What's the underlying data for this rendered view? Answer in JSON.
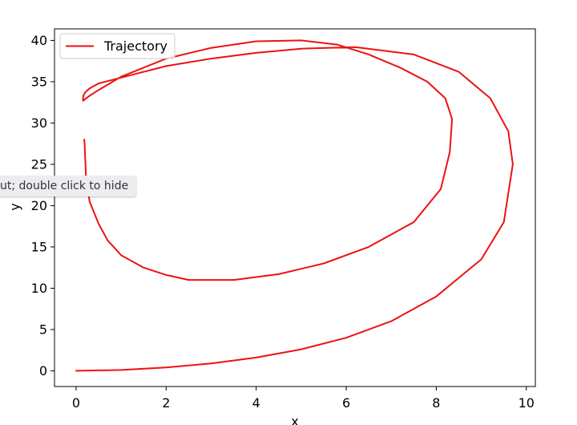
{
  "chart_data": {
    "type": "line",
    "title": "",
    "xlabel": "x",
    "ylabel": "y",
    "xlim": [
      -0.48,
      10.2
    ],
    "ylim": [
      -1.9,
      41.4
    ],
    "xticks": [
      0,
      2,
      4,
      6,
      8,
      10
    ],
    "yticks": [
      0,
      5,
      10,
      15,
      20,
      25,
      30,
      35,
      40
    ],
    "grid": false,
    "legend": {
      "placement": "top-left",
      "entries": [
        "Trajectory"
      ]
    },
    "series": [
      {
        "name": "Trajectory",
        "color": "#ee1111",
        "x": [
          0,
          1,
          2,
          3,
          4,
          5,
          6,
          7,
          8,
          9,
          9.5,
          9.7,
          9.6,
          9.2,
          8.5,
          7.5,
          6.2,
          5,
          4,
          3,
          2,
          1,
          0.5,
          0.3,
          0.2,
          0.16,
          0.15,
          0.16,
          0.2,
          0.3,
          0.5,
          1,
          2,
          3,
          4,
          5,
          5.8,
          6.5,
          7.2,
          7.8,
          8.2,
          8.35,
          8.3,
          8.1,
          7.5,
          6.5,
          5.5,
          4.5,
          3.5,
          2.5,
          2,
          1.5,
          1,
          0.7,
          0.5,
          0.3,
          0.22,
          0.2,
          0.19,
          0.18
        ],
        "y": [
          0,
          0.1,
          0.4,
          0.9,
          1.6,
          2.6,
          4.0,
          6.0,
          9.0,
          13.5,
          18.0,
          25.0,
          29.0,
          33.0,
          36.2,
          38.3,
          39.2,
          39.0,
          38.5,
          37.8,
          36.9,
          35.5,
          34.8,
          34.2,
          33.7,
          33.3,
          32.8,
          32.7,
          32.9,
          33.3,
          34.0,
          35.6,
          37.8,
          39.1,
          39.9,
          40.0,
          39.5,
          38.3,
          36.7,
          35.0,
          33.0,
          30.5,
          26.5,
          22.0,
          18.0,
          15.0,
          13.0,
          11.7,
          11.0,
          11.0,
          11.6,
          12.5,
          14.0,
          15.8,
          17.8,
          20.5,
          23.5,
          26.0,
          27.5,
          28.0
        ]
      }
    ]
  },
  "tooltip": {
    "text": "ut; double click to hide"
  }
}
